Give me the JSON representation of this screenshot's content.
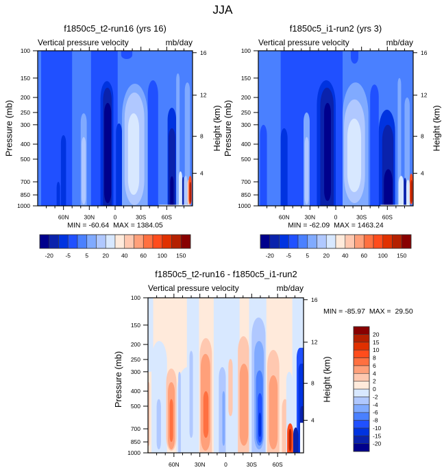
{
  "figure": {
    "title": "JJA"
  },
  "chart_data": [
    {
      "type": "heatmap",
      "subtype": "filled-contour",
      "title": "f1850c5_t2-run16 (yrs 16)",
      "left_string": "Vertical pressure velocity",
      "right_string": "mb/day",
      "xlabel": "",
      "ylabel": "Pressure (mb)",
      "y2label": "Height (km)",
      "xlim": [
        90,
        -90
      ],
      "ylim": [
        100,
        1000
      ],
      "yscale": "log",
      "xticks": [
        {
          "value": 60,
          "label": "60N"
        },
        {
          "value": 30,
          "label": "30N"
        },
        {
          "value": 0,
          "label": "0"
        },
        {
          "value": -30,
          "label": "30S"
        },
        {
          "value": -60,
          "label": "60S"
        }
      ],
      "x_minor_tick_step": 10,
      "yticks": [
        100,
        150,
        200,
        250,
        300,
        400,
        500,
        700,
        850,
        1000
      ],
      "y2ticks": [
        16,
        12,
        8,
        4
      ],
      "stats": {
        "min": -60.64,
        "max": 1384.05,
        "text": "MIN = -60.64  MAX = 1384.05"
      },
      "colorbar": {
        "orientation": "horizontal",
        "colors": [
          "#00008c",
          "#0a22ac",
          "#0033e0",
          "#2050ff",
          "#4a80ff",
          "#80aaff",
          "#b0c8ff",
          "#d8e8ff",
          "#ffeadb",
          "#ffc8b0",
          "#ffa07a",
          "#ff7040",
          "#ff4c1c",
          "#e03000",
          "#b42000",
          "#880000"
        ],
        "labels": [
          "-20",
          null,
          "-5",
          null,
          "5",
          null,
          "20",
          null,
          "40",
          null,
          "60",
          null,
          "100",
          null,
          "150"
        ]
      },
      "field": {
        "background_level": 4,
        "region_format": [
          "lat_north",
          "lat_south",
          "p_top_mb",
          "p_bottom_mb",
          "level_index"
        ],
        "regions": [
          [
            86,
            50,
            100,
            1000,
            3
          ],
          [
            28,
            -3,
            100,
            1000,
            3
          ],
          [
            -7,
            -20,
            100,
            113,
            3
          ],
          [
            63,
            57,
            350,
            1000,
            2
          ],
          [
            68,
            64,
            700,
            1000,
            2
          ],
          [
            40,
            33,
            253,
            1000,
            5
          ],
          [
            39,
            34,
            360,
            980,
            6
          ],
          [
            17,
            2,
            157,
            1000,
            2
          ],
          [
            14,
            4,
            173,
            1000,
            1
          ],
          [
            12.7,
            4.5,
            217,
            960,
            0
          ],
          [
            -1,
            -8,
            294,
            1000,
            2
          ],
          [
            -8,
            -38,
            163,
            1000,
            5
          ],
          [
            -11,
            -34,
            186,
            990,
            6
          ],
          [
            -15,
            -28,
            253,
            850,
            7
          ],
          [
            -38,
            -50,
            155,
            1000,
            3
          ],
          [
            -61,
            -71,
            233,
            1000,
            2
          ],
          [
            -62,
            -70,
            316,
            1000,
            1
          ],
          [
            -64,
            -68,
            645,
            1000,
            0
          ],
          [
            -71,
            -75,
            140,
            1000,
            5
          ],
          [
            -81,
            -87,
            160,
            1000,
            5
          ],
          [
            -74,
            -78,
            600,
            1000,
            7
          ],
          [
            -78,
            -80,
            650,
            1000,
            1
          ],
          [
            -80,
            -84,
            640,
            1000,
            6
          ],
          [
            -84,
            -86.5,
            680,
            990,
            9
          ],
          [
            -85.5,
            -89,
            640,
            980,
            12
          ],
          [
            -86.5,
            -88.5,
            700,
            960,
            14
          ],
          [
            -51,
            -88,
            985,
            1000,
            -1
          ]
        ]
      }
    },
    {
      "type": "heatmap",
      "subtype": "filled-contour",
      "title": "f1850c5_i1-run2 (yrs 3)",
      "left_string": "Vertical pressure velocity",
      "right_string": "mb/day",
      "xlabel": "",
      "ylabel": "Pressure (mb)",
      "y2label": "Height (km)",
      "xlim": [
        90,
        -90
      ],
      "ylim": [
        100,
        1000
      ],
      "yscale": "log",
      "xticks": [
        {
          "value": 60,
          "label": "60N"
        },
        {
          "value": 30,
          "label": "30N"
        },
        {
          "value": 0,
          "label": "0"
        },
        {
          "value": -30,
          "label": "30S"
        },
        {
          "value": -60,
          "label": "60S"
        }
      ],
      "x_minor_tick_step": 10,
      "yticks": [
        100,
        150,
        200,
        250,
        300,
        400,
        500,
        700,
        850,
        1000
      ],
      "y2ticks": [
        16,
        12,
        8,
        4
      ],
      "stats": {
        "min": -62.09,
        "max": 1463.24,
        "text": "MIN = -62.09  MAX = 1463.24"
      },
      "colorbar": {
        "orientation": "horizontal",
        "colors": [
          "#00008c",
          "#0a22ac",
          "#0033e0",
          "#2050ff",
          "#4a80ff",
          "#80aaff",
          "#b0c8ff",
          "#d8e8ff",
          "#ffeadb",
          "#ffc8b0",
          "#ffa07a",
          "#ff7040",
          "#ff4c1c",
          "#e03000",
          "#b42000",
          "#880000"
        ],
        "labels": [
          "-20",
          null,
          "-5",
          null,
          "5",
          null,
          "20",
          null,
          "40",
          null,
          "60",
          null,
          "100",
          null,
          "150"
        ]
      },
      "field": {
        "background_level": 4,
        "region_format": [
          "lat_north",
          "lat_south",
          "p_top_mb",
          "p_bottom_mb",
          "level_index"
        ],
        "regions": [
          [
            88,
            80,
            300,
            1000,
            3
          ],
          [
            64,
            -8,
            100,
            1000,
            3
          ],
          [
            64,
            56,
            316,
            1000,
            2
          ],
          [
            37.4,
            30.3,
            250,
            1000,
            5
          ],
          [
            36,
            31.5,
            360,
            980,
            6
          ],
          [
            22,
            0,
            155,
            1000,
            2
          ],
          [
            18,
            2.4,
            173,
            1000,
            1
          ],
          [
            13.5,
            5.6,
            217,
            930,
            0
          ],
          [
            -17.5,
            -26.3,
            100,
            121,
            3
          ],
          [
            -8,
            -38,
            160,
            1000,
            5
          ],
          [
            -9.6,
            -34,
            206,
            960,
            6
          ],
          [
            -13.5,
            -29.5,
            274,
            816,
            7
          ],
          [
            -40,
            -50,
            165,
            1000,
            3
          ],
          [
            -50,
            -69,
            240,
            1000,
            2
          ],
          [
            -54,
            -67,
            300,
            1000,
            1
          ],
          [
            -56,
            -66,
            580,
            1000,
            0
          ],
          [
            -72,
            -76,
            150,
            1000,
            5
          ],
          [
            -80,
            -86,
            200,
            1000,
            5
          ],
          [
            -73,
            -79,
            640,
            1000,
            7
          ],
          [
            -79,
            -82,
            660,
            1000,
            1
          ],
          [
            -82,
            -86,
            680,
            1000,
            7
          ],
          [
            -86,
            -89.5,
            620,
            980,
            12
          ],
          [
            -87,
            -89,
            680,
            960,
            14
          ],
          [
            -52,
            -86,
            985,
            1000,
            -1
          ]
        ]
      }
    },
    {
      "type": "heatmap",
      "subtype": "filled-contour",
      "title": "f1850c5_t2-run16 - f1850c5_i1-run2",
      "left_string": "Vertical pressure velocity",
      "right_string": "mb/day",
      "xlabel": "",
      "ylabel": "Pressure (mb)",
      "y2label": "Height (km)",
      "xlim": [
        90,
        -90
      ],
      "ylim": [
        100,
        1000
      ],
      "yscale": "log",
      "xticks": [
        {
          "value": 60,
          "label": "60N"
        },
        {
          "value": 30,
          "label": "30N"
        },
        {
          "value": 0,
          "label": "0"
        },
        {
          "value": -30,
          "label": "30S"
        },
        {
          "value": -60,
          "label": "60S"
        }
      ],
      "x_minor_tick_step": 10,
      "yticks": [
        100,
        150,
        200,
        250,
        300,
        400,
        500,
        700,
        850,
        1000
      ],
      "y2ticks": [
        16,
        12,
        8,
        4
      ],
      "stats": {
        "min": -85.97,
        "max": 29.5,
        "text": "MIN = -85.97  MAX =  29.50"
      },
      "colorbar": {
        "orientation": "vertical",
        "colors": [
          "#00008c",
          "#0a22ac",
          "#0033e0",
          "#2050ff",
          "#4a80ff",
          "#80aaff",
          "#b0c8ff",
          "#d8e8ff",
          "#ffeadb",
          "#ffc8b0",
          "#ffa07a",
          "#ff7040",
          "#ff4c1c",
          "#e03000",
          "#b42000",
          "#880000"
        ],
        "labels": [
          "-20",
          "-15",
          "-10",
          "-8",
          "-6",
          "-4",
          "-2",
          "0",
          "2",
          "4",
          "6",
          "8",
          "10",
          "15",
          "20"
        ]
      },
      "field": {
        "background_level": 8,
        "region_format": [
          "lat_north",
          "lat_south",
          "p_top_mb",
          "p_bottom_mb",
          "level_index"
        ],
        "regions": [
          [
            90,
            84,
            100,
            300,
            7
          ],
          [
            86,
            68,
            190,
            1000,
            7
          ],
          [
            80,
            75,
            450,
            950,
            6
          ],
          [
            90,
            88,
            350,
            900,
            9
          ],
          [
            69,
            57,
            286,
            970,
            9
          ],
          [
            67,
            59,
            350,
            950,
            10
          ],
          [
            65,
            61,
            450,
            850,
            11
          ],
          [
            57,
            31,
            280,
            1000,
            7
          ],
          [
            45,
            31,
            100,
            1000,
            7
          ],
          [
            55,
            52,
            300,
            1000,
            6
          ],
          [
            42,
            38,
            220,
            800,
            6
          ],
          [
            30,
            16,
            182,
            1000,
            9
          ],
          [
            29,
            18,
            230,
            970,
            10
          ],
          [
            26,
            20,
            400,
            800,
            11
          ],
          [
            14,
            -16,
            100,
            1000,
            7
          ],
          [
            8,
            0,
            280,
            1000,
            6
          ],
          [
            4,
            1,
            400,
            900,
            5
          ],
          [
            -3,
            -8,
            248,
            580,
            9
          ],
          [
            -14,
            -27,
            177,
            1000,
            9
          ],
          [
            -16,
            -26,
            266,
            900,
            10
          ],
          [
            -27,
            -47,
            100,
            1000,
            7
          ],
          [
            -30,
            -46,
            134,
            1000,
            6
          ],
          [
            -33,
            -44,
            190,
            950,
            5
          ],
          [
            -35,
            -43,
            294,
            900,
            4
          ],
          [
            -37,
            -42,
            412,
            860,
            3
          ],
          [
            -38,
            -41,
            550,
            790,
            2
          ],
          [
            -48,
            -62,
            217,
            1000,
            9
          ],
          [
            -50,
            -60,
            316,
            950,
            10
          ],
          [
            -65,
            -72,
            450,
            1000,
            9
          ],
          [
            -70,
            -77,
            300,
            1000,
            7
          ],
          [
            -77,
            -90,
            100,
            1000,
            7
          ],
          [
            -82,
            -90,
            210,
            1000,
            3
          ],
          [
            -84,
            -90,
            266,
            1000,
            2
          ],
          [
            -86,
            -90,
            500,
            1000,
            1
          ],
          [
            -71,
            -78,
            645,
            1000,
            12
          ],
          [
            -73,
            -76,
            700,
            980,
            14
          ],
          [
            -78,
            -84,
            686,
            1000,
            1
          ],
          [
            -86,
            -90,
            640,
            1000,
            -1
          ]
        ]
      }
    }
  ]
}
